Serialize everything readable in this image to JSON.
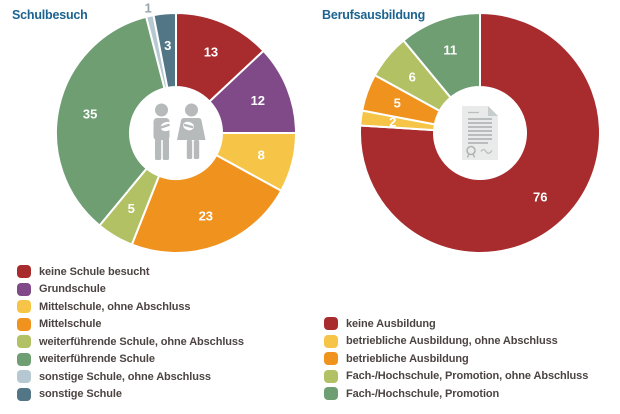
{
  "style": {
    "background": "#FFFFFF",
    "title_color": "#1C6390",
    "legend_text_color": "#4C4442",
    "slice_label_color": "#FFFFFF",
    "outside_label_color": "#97A6AD",
    "icon_gray": "#B6BABB",
    "separator_color": "#FFFFFF"
  },
  "chart_data": [
    {
      "type": "pie",
      "subtype": "donut",
      "title": "Schulbesuch",
      "center_icon": "family-icon",
      "start_angle_deg": 0,
      "direction": "clockwise",
      "legend_position": "bottom-left",
      "categories": [
        "keine Schule besucht",
        "Grundschule",
        "Mittelschule, ohne Abschluss",
        "Mittelschule",
        "weiterführende Schule, ohne Abschluss",
        "weiterführende Schule",
        "sonstige Schule, ohne Abschluss",
        "sonstige Schule"
      ],
      "values": [
        13,
        12,
        8,
        23,
        5,
        35,
        1,
        3
      ],
      "colors": [
        "#A82C2E",
        "#7F4A87",
        "#F6C548",
        "#F0921E",
        "#B2C163",
        "#6F9E73",
        "#B6C9D2",
        "#527685"
      ],
      "outside_label_indices": [
        6
      ],
      "total": 100
    },
    {
      "type": "pie",
      "subtype": "donut",
      "title": "Berufsausbildung",
      "center_icon": "certificate-icon",
      "start_angle_deg": 0,
      "direction": "clockwise",
      "legend_position": "bottom-right",
      "categories": [
        "keine Ausbildung",
        "betriebliche Ausbildung, ohne Abschluss",
        "betriebliche Ausbildung",
        "Fach-/Hochschule, Promotion, ohne Abschluss",
        "Fach-/Hochschule, Promotion"
      ],
      "values": [
        76,
        2,
        5,
        6,
        11
      ],
      "colors": [
        "#A82C2E",
        "#F6C548",
        "#F0921E",
        "#B2C163",
        "#6F9E73"
      ],
      "outside_label_indices": [],
      "total": 100
    }
  ]
}
